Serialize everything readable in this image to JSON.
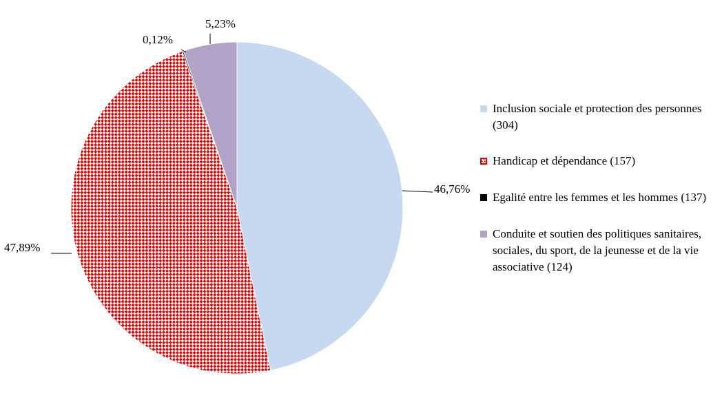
{
  "chart_data": {
    "type": "pie",
    "title": "",
    "slices": [
      {
        "label": "Inclusion sociale et protection des personnes (304)",
        "value": 46.76,
        "value_label": "46,76%",
        "color": "#c6d9f1",
        "pattern": "solid"
      },
      {
        "label": "Handicap et dépendance (157)",
        "value": 47.89,
        "value_label": "47,89%",
        "color": "#e00000",
        "pattern": "red-checker"
      },
      {
        "label": "Egalité entre les femmes et les hommes (137)",
        "value": 0.12,
        "value_label": "0,12%",
        "color": "#000000",
        "pattern": "solid"
      },
      {
        "label": "Conduite et soutien des politiques sanitaires, sociales, du sport, de la jeunesse et de la vie associative (124)",
        "value": 5.23,
        "value_label": "5,23%",
        "color": "#b3a2c7",
        "pattern": "solid"
      }
    ],
    "legend_position": "right",
    "start_angle": "12 o'clock",
    "direction": "clockwise"
  }
}
